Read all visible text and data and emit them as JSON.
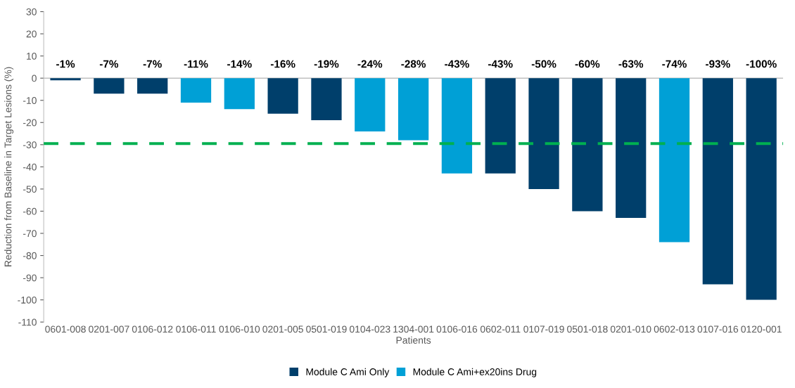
{
  "chart_data": {
    "type": "bar",
    "xlabel": "Patients",
    "ylabel": "Reduction from Baseline in Target Lesions (%)",
    "categories": [
      "0601-008",
      "0201-007",
      "0106-012",
      "0106-011",
      "0106-010",
      "0201-005",
      "0501-019",
      "0104-023",
      "1304-001",
      "0106-016",
      "0602-011",
      "0107-019",
      "0501-018",
      "0201-010",
      "0602-013",
      "0107-016",
      "0120-001"
    ],
    "series": [
      {
        "name": "Module C Ami Only",
        "color": "#003f6b",
        "values": [
          -1,
          -7,
          -7,
          null,
          null,
          -16,
          -19,
          null,
          null,
          null,
          -43,
          -50,
          -60,
          -63,
          null,
          -93,
          -100
        ]
      },
      {
        "name": "Module C Ami+ex20ins Drug",
        "color": "#00a0d6",
        "values": [
          null,
          null,
          null,
          -11,
          -14,
          null,
          null,
          -24,
          -28,
          -43,
          null,
          null,
          null,
          null,
          -74,
          null,
          null
        ]
      }
    ],
    "value_labels": [
      "-1%",
      "-7%",
      "-7%",
      "-11%",
      "-14%",
      "-16%",
      "-19%",
      "-24%",
      "-28%",
      "-43%",
      "-43%",
      "-50%",
      "-60%",
      "-63%",
      "-74%",
      "-93%",
      "-100%"
    ],
    "ylim": [
      -110,
      30
    ],
    "yticks": [
      -110,
      -100,
      -90,
      -80,
      -70,
      -60,
      -50,
      -40,
      -30,
      -20,
      -10,
      0,
      10,
      20,
      30
    ],
    "ref_lines": [
      {
        "axis": "y",
        "value": -29.5,
        "color": "#00b050",
        "line_style": "dashed"
      }
    ],
    "grid": false,
    "legend": "bottom"
  }
}
